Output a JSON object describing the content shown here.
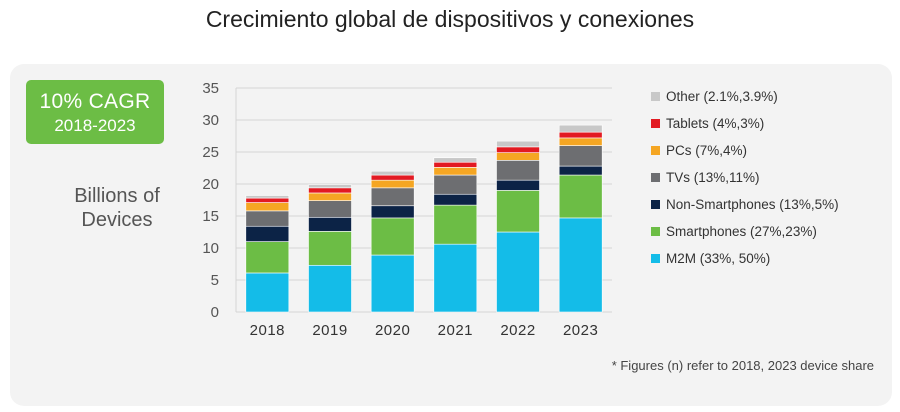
{
  "page_title": "Crecimiento global de dispositivos y conexiones",
  "badge": {
    "title": "10% CAGR",
    "period": "2018-2023",
    "color": "#6cbd45"
  },
  "y_axis_label": [
    "Billions of",
    "Devices"
  ],
  "footnote": "* Figures (n) refer to 2018, 2023 device share",
  "chart_data": {
    "type": "bar",
    "stacked": true,
    "categories": [
      "2018",
      "2019",
      "2020",
      "2021",
      "2022",
      "2023"
    ],
    "ylim": [
      0,
      35
    ],
    "yticks": [
      0,
      5,
      10,
      15,
      20,
      25,
      30,
      35
    ],
    "grid": true,
    "legend_position": "right",
    "series": [
      {
        "name": "M2M (33%, 50%)",
        "color": "#14bce8",
        "values": [
          6.1,
          7.3,
          8.9,
          10.6,
          12.5,
          14.7
        ]
      },
      {
        "name": "Smartphones (27%,23%)",
        "color": "#6cbd45",
        "values": [
          4.9,
          5.3,
          5.8,
          6.1,
          6.5,
          6.7
        ]
      },
      {
        "name": "Non-Smartphones (13%,5%)",
        "color": "#0c2346",
        "values": [
          2.4,
          2.2,
          1.9,
          1.7,
          1.6,
          1.4
        ]
      },
      {
        "name": "TVs (13%,11%)",
        "color": "#6d6e71",
        "values": [
          2.4,
          2.6,
          2.8,
          3.0,
          3.1,
          3.2
        ]
      },
      {
        "name": "PCs (7%,4%)",
        "color": "#f5a623",
        "values": [
          1.3,
          1.2,
          1.2,
          1.2,
          1.2,
          1.2
        ]
      },
      {
        "name": "Tablets (4%,3%)",
        "color": "#e21a22",
        "values": [
          0.7,
          0.8,
          0.8,
          0.8,
          0.9,
          0.9
        ]
      },
      {
        "name": "Other (2.1%,3.9%)",
        "color": "#c8c8c8",
        "values": [
          0.4,
          0.5,
          0.6,
          0.7,
          0.9,
          1.1
        ]
      }
    ]
  }
}
